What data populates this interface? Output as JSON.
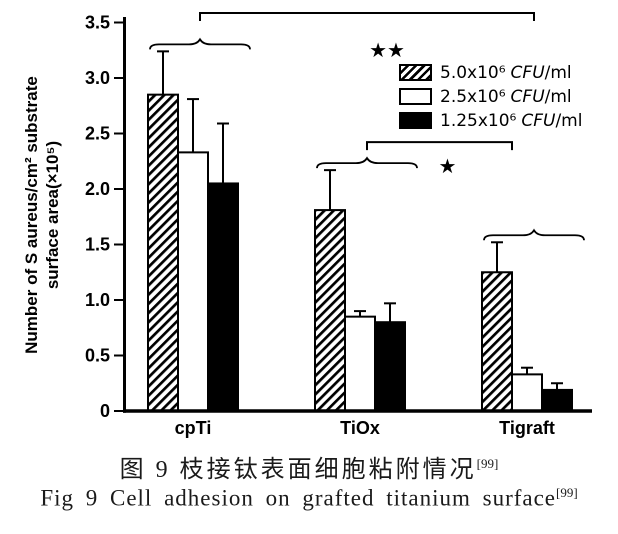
{
  "figure": {
    "caption_cn": "图 9  枝接钛表面细胞粘附情况",
    "caption_cn_ref": "[99]",
    "caption_en": "Fig 9 Cell adhesion on grafted titanium surface",
    "caption_en_ref": "[99]"
  },
  "legend": {
    "items": [
      {
        "swatch": "hatched",
        "conc": "5.0x10⁶",
        "cfu": "CFU",
        "per": "/ml"
      },
      {
        "swatch": "open",
        "conc": "2.5x10⁶",
        "cfu": "CFU",
        "per": "/ml"
      },
      {
        "swatch": "filled",
        "conc": "1.25x10⁶",
        "cfu": "CFU",
        "per": "/ml"
      }
    ]
  },
  "chart_data": {
    "type": "bar",
    "title": "",
    "categories": [
      "cpTi",
      "TiOx",
      "Tigraft"
    ],
    "ylabel_line1": "Number of S aureus/cm² substrate",
    "ylabel_line2": "surface area(×10⁵)",
    "ylim": [
      0,
      3.5
    ],
    "ytick_step": 0.5,
    "yticks": [
      "3.5",
      "3.0",
      "2.5",
      "2.0",
      "1.5",
      "1.0",
      "0.5",
      "0"
    ],
    "grid": false,
    "legend_position": "upper right",
    "series": [
      {
        "name": "5.0x10⁶ CFU/ml",
        "style": "hatched",
        "values": [
          2.85,
          1.81,
          1.25
        ],
        "errors": [
          0.39,
          0.36,
          0.27
        ]
      },
      {
        "name": "2.5x10⁶ CFU/ml",
        "style": "open",
        "values": [
          2.33,
          0.85,
          0.33
        ],
        "errors": [
          0.48,
          0.05,
          0.06
        ]
      },
      {
        "name": "1.25x10⁶ CFU/ml",
        "style": "filled",
        "values": [
          2.05,
          0.8,
          0.19
        ],
        "errors": [
          0.54,
          0.17,
          0.06
        ]
      }
    ],
    "group_braces": [
      0,
      1,
      2
    ],
    "significance": [
      {
        "label": "★★",
        "from": 0,
        "to": 2
      },
      {
        "label": "★",
        "from": 1,
        "to": 2
      }
    ],
    "colors": {
      "line": "#000000",
      "bar_open_fill": "#ffffff",
      "bar_filled_fill": "#000000",
      "background": "#ffffff"
    }
  }
}
